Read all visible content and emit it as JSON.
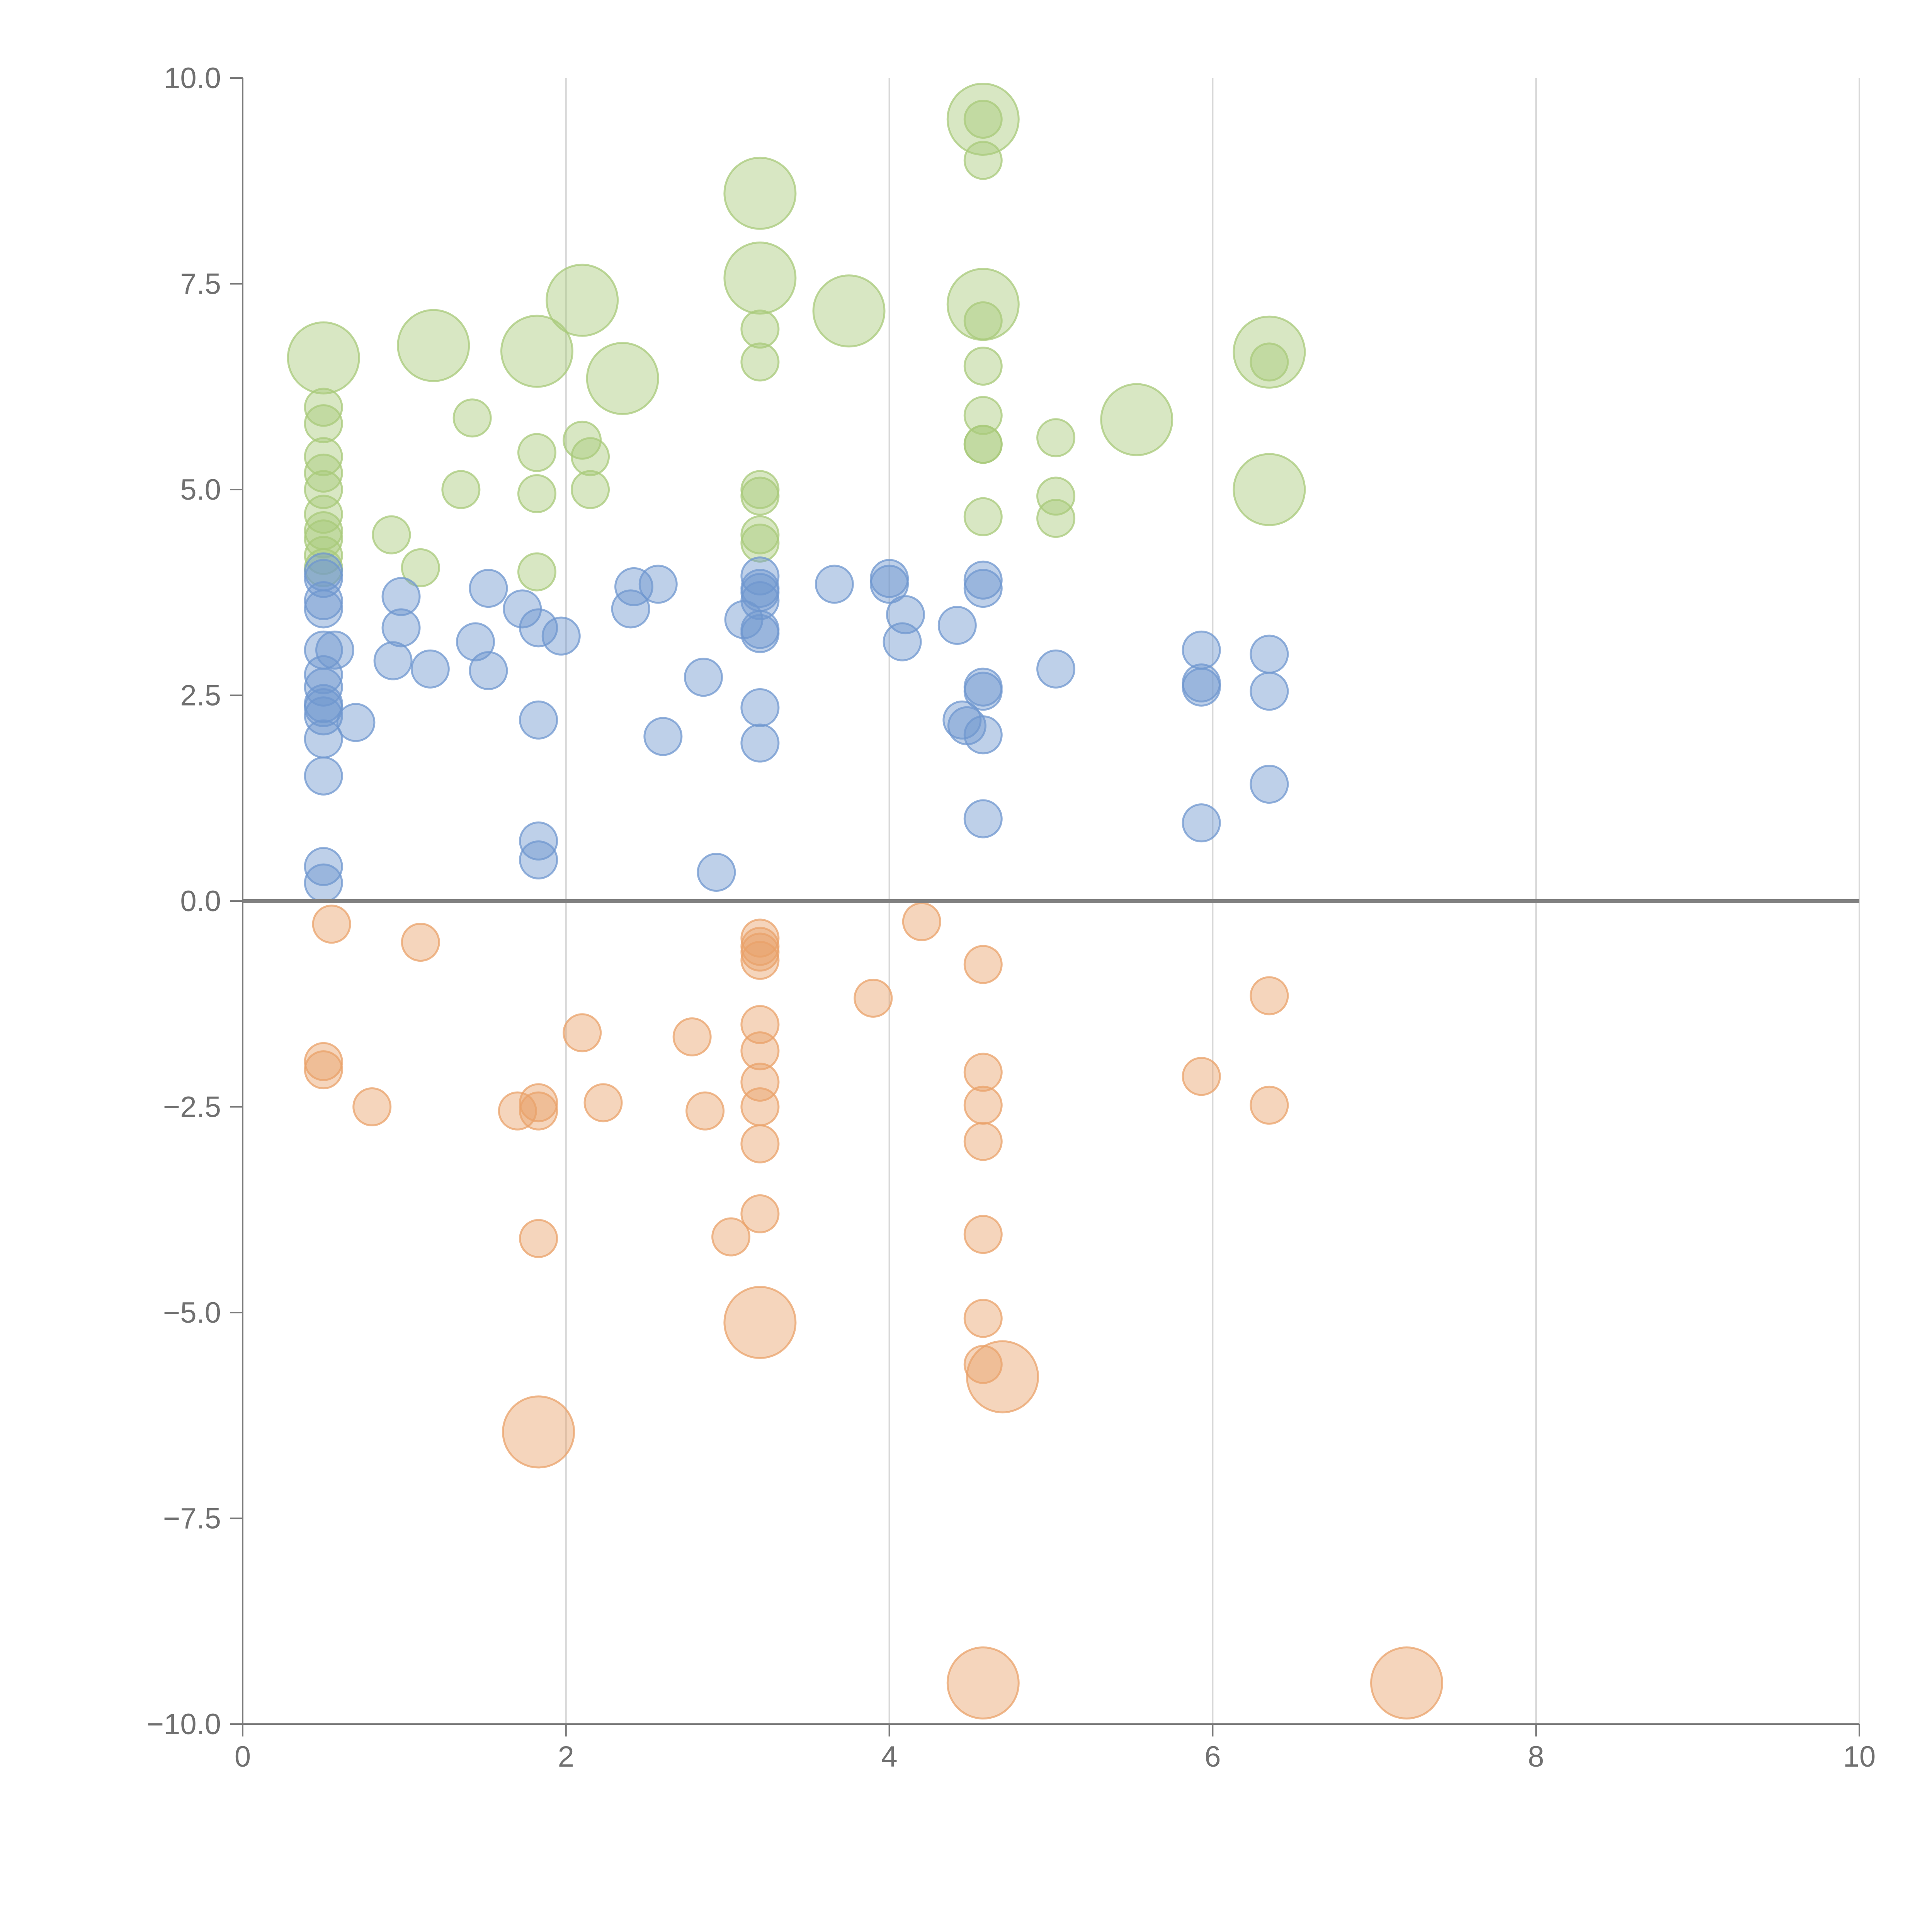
{
  "colors": {
    "green": "#a8c97a",
    "blue": "#6f97cf",
    "orange": "#e9a26a",
    "axis": "#7a7a7a",
    "grid": "#d8d8d8",
    "zero": "#808080",
    "tick_text": "#707070"
  },
  "chart_data": {
    "type": "scatter",
    "variant": "bubble",
    "title": "",
    "xlabel": "",
    "ylabel": "",
    "xlim": [
      0,
      10
    ],
    "ylim": [
      -10,
      10
    ],
    "x_ticks": [
      0,
      2,
      4,
      6,
      8,
      10
    ],
    "x_tick_labels": [
      "0",
      "2",
      "4",
      "6",
      "8",
      "10"
    ],
    "y_ticks": [
      10,
      7.5,
      5,
      2.5,
      0,
      -2.5,
      -5,
      -7.5,
      -10
    ],
    "y_tick_labels": [
      "10.0",
      "7.5",
      "5.0",
      "2.5",
      "0.0",
      "−2.5",
      "−5.0",
      "−7.5",
      "−10.0"
    ],
    "grid": "vertical",
    "zero_line": true,
    "legend": "none",
    "series": [
      {
        "name": "green",
        "color_key": "green",
        "points": [
          [
            0.5,
            6.6,
            2
          ],
          [
            1.18,
            6.75,
            2
          ],
          [
            1.82,
            6.68,
            2
          ],
          [
            2.1,
            7.3,
            2
          ],
          [
            2.35,
            6.35,
            2
          ],
          [
            3.2,
            8.6,
            2
          ],
          [
            3.2,
            7.57,
            2
          ],
          [
            3.75,
            7.17,
            2
          ],
          [
            4.58,
            9.5,
            2
          ],
          [
            4.58,
            7.25,
            2
          ],
          [
            5.53,
            5.85,
            2
          ],
          [
            6.35,
            6.67,
            2
          ],
          [
            6.35,
            5.0,
            2
          ],
          [
            0.5,
            6.0,
            1
          ],
          [
            0.5,
            5.8,
            1
          ],
          [
            0.5,
            5.4,
            1
          ],
          [
            0.5,
            5.2,
            1
          ],
          [
            0.5,
            5.0,
            1
          ],
          [
            0.5,
            4.7,
            1
          ],
          [
            0.5,
            4.5,
            1
          ],
          [
            0.5,
            4.4,
            1
          ],
          [
            0.5,
            4.2,
            1
          ],
          [
            0.5,
            4.05,
            1
          ],
          [
            0.92,
            4.45,
            1
          ],
          [
            1.1,
            4.05,
            1
          ],
          [
            1.35,
            5.0,
            1
          ],
          [
            1.42,
            5.87,
            1
          ],
          [
            1.82,
            5.45,
            1
          ],
          [
            1.82,
            4.95,
            1
          ],
          [
            1.82,
            4.0,
            1
          ],
          [
            2.1,
            5.6,
            1
          ],
          [
            2.15,
            5.4,
            1
          ],
          [
            2.15,
            5.0,
            1
          ],
          [
            3.2,
            6.95,
            1
          ],
          [
            3.2,
            6.55,
            1
          ],
          [
            3.2,
            5.0,
            1
          ],
          [
            3.2,
            4.92,
            1
          ],
          [
            3.2,
            4.45,
            1
          ],
          [
            3.2,
            4.35,
            1
          ],
          [
            4.58,
            9.5,
            1
          ],
          [
            4.58,
            9.0,
            1
          ],
          [
            4.58,
            7.05,
            1
          ],
          [
            4.58,
            6.5,
            1
          ],
          [
            4.58,
            5.9,
            1
          ],
          [
            4.58,
            5.55,
            1
          ],
          [
            4.58,
            5.55,
            1
          ],
          [
            4.58,
            4.67,
            1
          ],
          [
            5.03,
            5.63,
            1
          ],
          [
            5.03,
            4.92,
            1
          ],
          [
            5.03,
            4.65,
            1
          ],
          [
            6.35,
            6.55,
            1
          ]
        ]
      },
      {
        "name": "blue",
        "color_key": "blue",
        "points": [
          [
            0.5,
            4.0,
            1
          ],
          [
            0.5,
            3.92,
            1
          ],
          [
            0.5,
            3.65,
            1
          ],
          [
            0.5,
            3.55,
            1
          ],
          [
            0.5,
            3.05,
            1
          ],
          [
            0.5,
            2.75,
            1
          ],
          [
            0.5,
            2.6,
            1
          ],
          [
            0.5,
            2.4,
            1
          ],
          [
            0.5,
            2.35,
            1
          ],
          [
            0.5,
            2.25,
            1
          ],
          [
            0.5,
            1.97,
            1
          ],
          [
            0.5,
            1.52,
            1
          ],
          [
            0.5,
            0.42,
            1
          ],
          [
            0.5,
            0.22,
            1
          ],
          [
            0.57,
            3.05,
            1
          ],
          [
            0.7,
            2.17,
            1
          ],
          [
            0.93,
            2.92,
            1
          ],
          [
            0.98,
            3.7,
            1
          ],
          [
            0.98,
            3.32,
            1
          ],
          [
            1.16,
            2.82,
            1
          ],
          [
            1.44,
            3.15,
            1
          ],
          [
            1.52,
            3.8,
            1
          ],
          [
            1.52,
            2.8,
            1
          ],
          [
            1.73,
            3.55,
            1
          ],
          [
            1.83,
            3.32,
            1
          ],
          [
            1.83,
            2.2,
            1
          ],
          [
            1.83,
            0.73,
            1
          ],
          [
            1.83,
            0.5,
            1
          ],
          [
            1.97,
            3.22,
            1
          ],
          [
            2.4,
            3.55,
            1
          ],
          [
            2.42,
            3.82,
            1
          ],
          [
            2.57,
            3.85,
            1
          ],
          [
            2.6,
            2.0,
            1
          ],
          [
            2.85,
            2.72,
            1
          ],
          [
            2.93,
            0.35,
            1
          ],
          [
            3.1,
            3.42,
            1
          ],
          [
            3.2,
            3.95,
            1
          ],
          [
            3.2,
            3.8,
            1
          ],
          [
            3.2,
            3.75,
            1
          ],
          [
            3.2,
            3.65,
            1
          ],
          [
            3.2,
            3.3,
            1
          ],
          [
            3.2,
            3.25,
            1
          ],
          [
            3.2,
            2.35,
            1
          ],
          [
            3.2,
            1.92,
            1
          ],
          [
            3.66,
            3.85,
            1
          ],
          [
            4.0,
            3.92,
            1
          ],
          [
            4.0,
            3.85,
            1
          ],
          [
            4.08,
            3.15,
            1
          ],
          [
            4.1,
            3.48,
            1
          ],
          [
            4.42,
            3.35,
            1
          ],
          [
            4.45,
            2.2,
            1
          ],
          [
            4.48,
            2.13,
            1
          ],
          [
            4.58,
            3.9,
            1
          ],
          [
            4.58,
            3.8,
            1
          ],
          [
            4.58,
            2.6,
            1
          ],
          [
            4.58,
            2.55,
            1
          ],
          [
            4.58,
            2.02,
            1
          ],
          [
            4.58,
            1.0,
            1
          ],
          [
            5.03,
            2.82,
            1
          ],
          [
            5.93,
            3.05,
            1
          ],
          [
            5.93,
            2.65,
            1
          ],
          [
            5.93,
            2.6,
            1
          ],
          [
            5.93,
            0.95,
            1
          ],
          [
            6.35,
            3.0,
            1
          ],
          [
            6.35,
            2.55,
            1
          ],
          [
            6.35,
            1.42,
            1
          ]
        ]
      },
      {
        "name": "orange",
        "color_key": "orange",
        "points": [
          [
            0.55,
            -0.28,
            1
          ],
          [
            1.1,
            -0.5,
            1
          ],
          [
            0.5,
            -1.95,
            1
          ],
          [
            0.5,
            -2.05,
            1
          ],
          [
            0.8,
            -2.5,
            1
          ],
          [
            1.7,
            -2.55,
            1
          ],
          [
            1.83,
            -2.45,
            1
          ],
          [
            1.83,
            -2.55,
            1
          ],
          [
            1.83,
            -4.1,
            1
          ],
          [
            1.83,
            -6.45,
            2
          ],
          [
            2.1,
            -1.6,
            1
          ],
          [
            2.23,
            -2.45,
            1
          ],
          [
            2.78,
            -1.65,
            1
          ],
          [
            2.86,
            -2.55,
            1
          ],
          [
            3.02,
            -4.08,
            1
          ],
          [
            3.2,
            -0.45,
            1
          ],
          [
            3.2,
            -0.55,
            1
          ],
          [
            3.2,
            -0.62,
            1
          ],
          [
            3.2,
            -0.72,
            1
          ],
          [
            3.2,
            -1.5,
            1
          ],
          [
            3.2,
            -1.82,
            1
          ],
          [
            3.2,
            -2.2,
            1
          ],
          [
            3.2,
            -2.5,
            1
          ],
          [
            3.2,
            -2.95,
            1
          ],
          [
            3.2,
            -3.8,
            1
          ],
          [
            3.2,
            -5.12,
            2
          ],
          [
            3.9,
            -1.18,
            1
          ],
          [
            4.2,
            -0.25,
            1
          ],
          [
            4.58,
            -0.77,
            1
          ],
          [
            4.58,
            -2.08,
            1
          ],
          [
            4.58,
            -2.48,
            1
          ],
          [
            4.58,
            -2.92,
            1
          ],
          [
            4.58,
            -4.05,
            1
          ],
          [
            4.58,
            -5.07,
            1
          ],
          [
            4.58,
            -5.63,
            1
          ],
          [
            4.7,
            -5.78,
            2
          ],
          [
            4.58,
            -9.5,
            2
          ],
          [
            5.93,
            -2.13,
            1
          ],
          [
            6.35,
            -1.15,
            1
          ],
          [
            6.35,
            -2.48,
            1
          ],
          [
            7.2,
            -9.5,
            2
          ]
        ]
      }
    ]
  }
}
